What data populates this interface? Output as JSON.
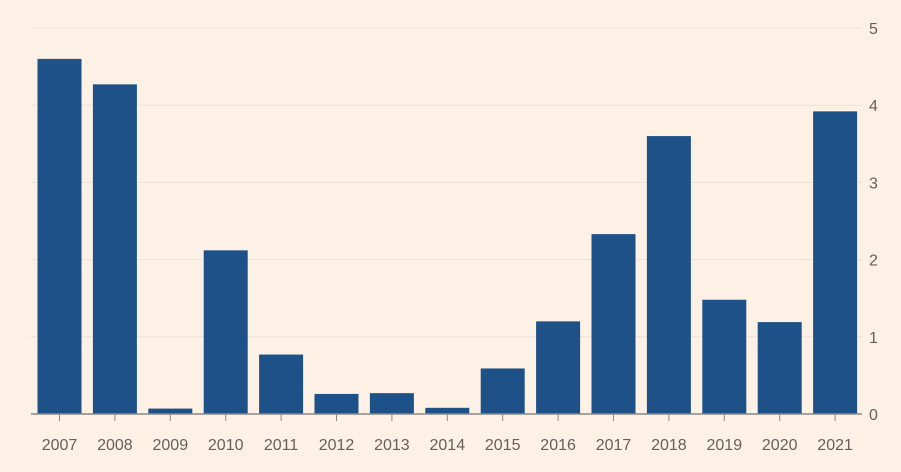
{
  "colors": {
    "background": "#fdf1e6",
    "bar": "#1d5187",
    "gridline": "#ece1d6",
    "axis": "#8c8783",
    "text": "#66605c"
  },
  "chart_data": {
    "type": "bar",
    "title": "",
    "xlabel": "",
    "ylabel": "",
    "categories": [
      "2007",
      "2008",
      "2009",
      "2010",
      "2011",
      "2012",
      "2013",
      "2014",
      "2015",
      "2016",
      "2017",
      "2018",
      "2019",
      "2020",
      "2021"
    ],
    "values": [
      4.6,
      4.27,
      0.07,
      2.12,
      0.77,
      0.26,
      0.27,
      0.08,
      0.59,
      1.2,
      2.33,
      3.6,
      1.48,
      1.19,
      3.92
    ],
    "ylim": [
      0,
      5
    ],
    "yticks": [
      "0",
      "1",
      "2",
      "3",
      "4",
      "5"
    ],
    "grid": true,
    "y_axis_position": "right"
  }
}
